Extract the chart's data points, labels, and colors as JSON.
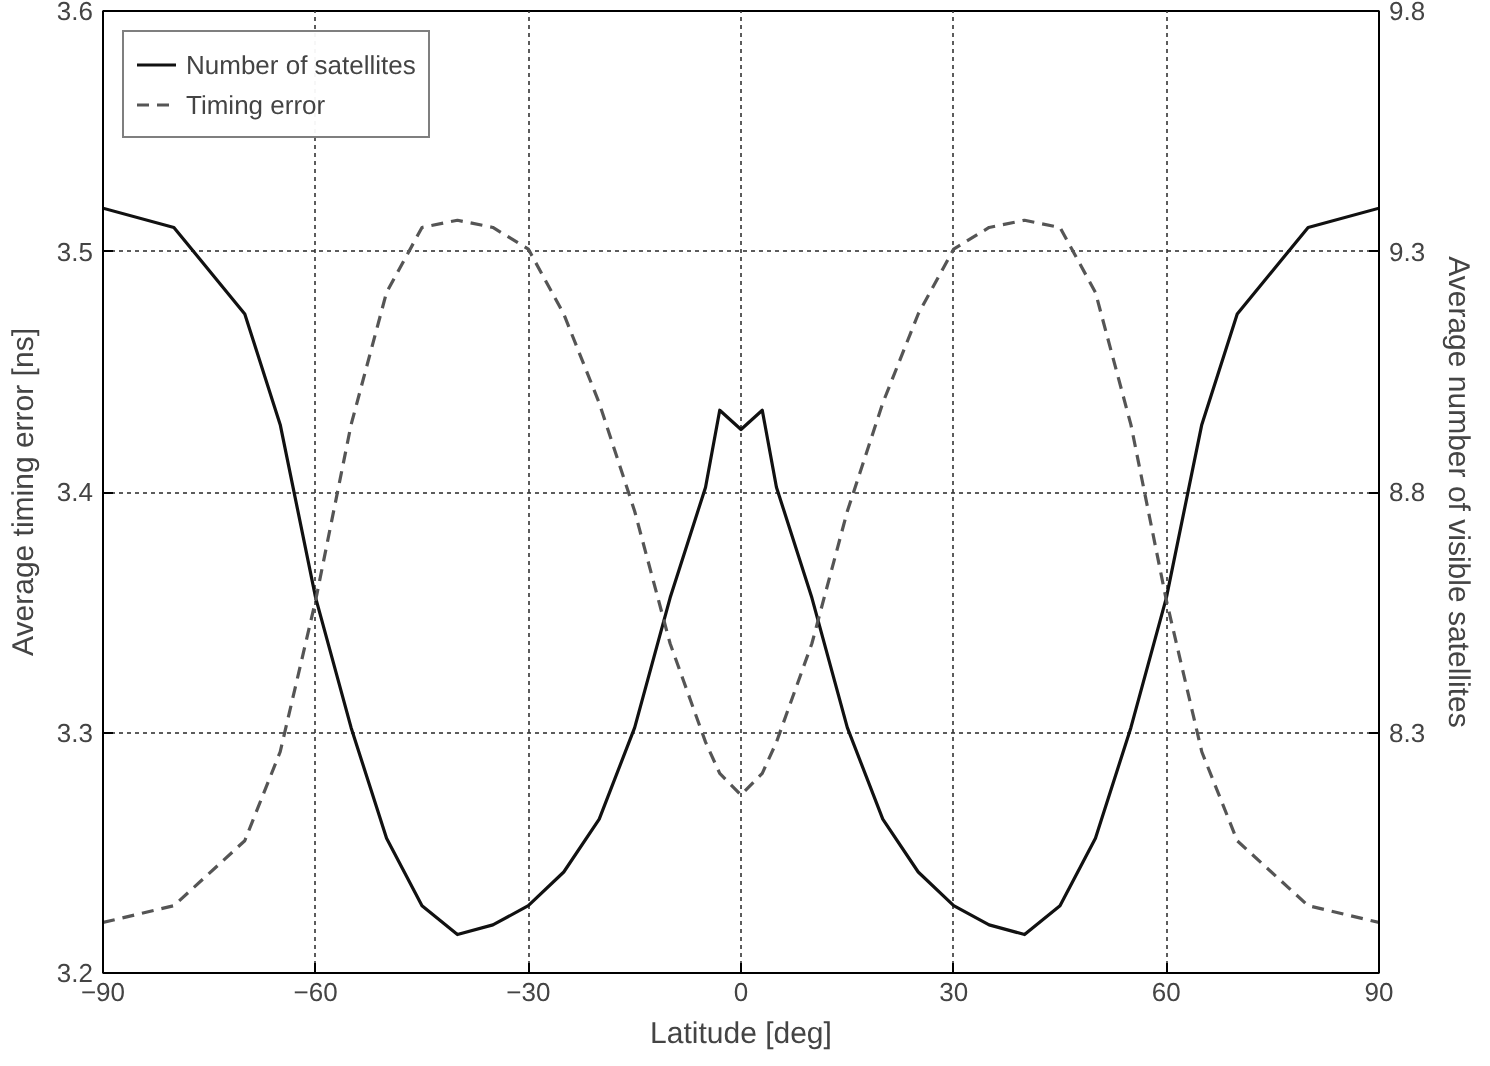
{
  "chart_data": {
    "type": "line",
    "xlabel": "Latitude [deg]",
    "ylabel": "Average timing error [ns]",
    "y2label": "Average number of visible satellites",
    "xlim": [
      -90,
      90
    ],
    "xticks": [
      -90,
      -60,
      -30,
      0,
      30,
      60,
      90
    ],
    "ylim": [
      3.2,
      3.6
    ],
    "yticks": [
      3.2,
      3.3,
      3.4,
      3.5,
      3.6
    ],
    "y2lim": [
      7.8,
      9.8
    ],
    "y2ticks": [
      8.3,
      8.8,
      9.3,
      9.8
    ],
    "grid": true,
    "legend": "top left",
    "series": [
      {
        "name": "Number of satellites",
        "color": "#111111",
        "axis": "y2",
        "line_style": "solid",
        "x": [
          -90,
          -80,
          -70,
          -65,
          -60,
          -55,
          -50,
          -45,
          -40,
          -35,
          -30,
          -25,
          -20,
          -15,
          -10,
          -5,
          -3,
          0,
          3,
          5,
          10,
          15,
          20,
          25,
          30,
          35,
          40,
          45,
          50,
          55,
          60,
          65,
          70,
          80,
          90
        ],
        "values": [
          9.39,
          9.35,
          9.17,
          8.94,
          8.58,
          8.31,
          8.08,
          7.94,
          7.88,
          7.9,
          7.94,
          8.01,
          8.12,
          8.31,
          8.58,
          8.81,
          8.97,
          8.93,
          8.97,
          8.81,
          8.58,
          8.31,
          8.12,
          8.01,
          7.94,
          7.9,
          7.88,
          7.94,
          8.08,
          8.31,
          8.58,
          8.94,
          9.17,
          9.35,
          9.39
        ]
      },
      {
        "name": "Timing error",
        "color": "#555555",
        "line_style": "dashed",
        "x": [
          -90,
          -80,
          -70,
          -65,
          -60,
          -55,
          -50,
          -45,
          -40,
          -35,
          -30,
          -25,
          -20,
          -15,
          -10,
          -5,
          -3,
          0,
          3,
          5,
          10,
          15,
          20,
          25,
          30,
          35,
          40,
          45,
          50,
          55,
          60,
          65,
          70,
          80,
          90
        ],
        "values": [
          3.221,
          3.228,
          3.255,
          3.292,
          3.355,
          3.428,
          3.483,
          3.51,
          3.513,
          3.51,
          3.501,
          3.474,
          3.437,
          3.392,
          3.337,
          3.296,
          3.283,
          3.274,
          3.283,
          3.296,
          3.337,
          3.392,
          3.437,
          3.474,
          3.501,
          3.51,
          3.513,
          3.51,
          3.483,
          3.428,
          3.355,
          3.292,
          3.255,
          3.228,
          3.221
        ]
      }
    ]
  }
}
